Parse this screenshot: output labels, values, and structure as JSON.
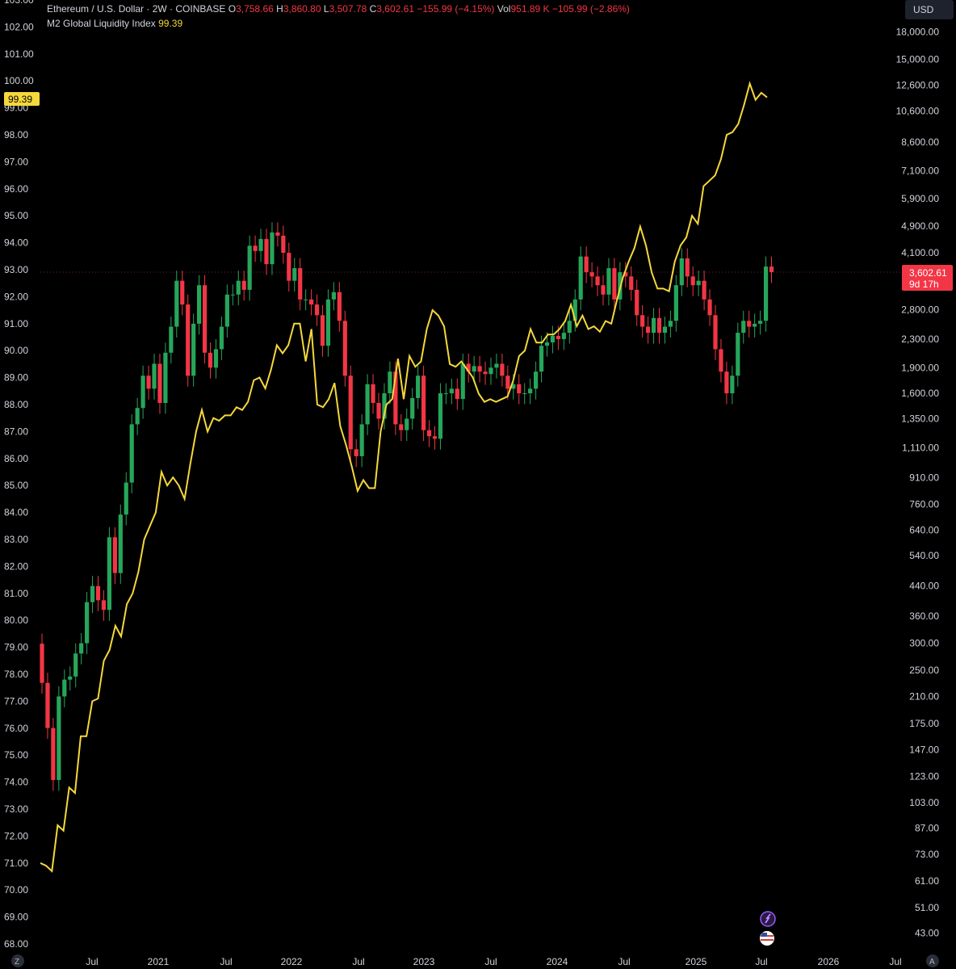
{
  "header": {
    "symbol": "Ethereum / U.S. Dollar · 2W · COINBASE",
    "o_label": "O",
    "o_value": "3,758.66",
    "h_label": "H",
    "h_value": "3,860.80",
    "l_label": "L",
    "l_value": "3,507.78",
    "c_label": "C",
    "c_value": "3,602.61",
    "change": "−155.99 (−4.15%)",
    "vol_label": "Vol",
    "vol_value": "951.89 K",
    "vol_change": "−105.99 (−2.86%)",
    "indicator_name": "M2 Global Liquidity Index",
    "indicator_value": "99.39"
  },
  "right_axis": {
    "currency": "USD",
    "price_tag": "3,602.61",
    "countdown": "9d 17h"
  },
  "left_axis": {
    "tag": "99.39"
  },
  "colors": {
    "up": "#26a65b",
    "down": "#f23645",
    "line": "#f5d83b",
    "grid_dash": "#7a1f25"
  },
  "icons": [
    "z-badge-icon",
    "a-badge-icon",
    "sparkle-icon",
    "us-flag-icon"
  ],
  "chart_data": {
    "type": "candlestick",
    "x_ticks": [
      "Jul",
      "2021",
      "Jul",
      "2022",
      "Jul",
      "2023",
      "Jul",
      "2024",
      "Jul",
      "2025",
      "Jul",
      "2026",
      "Jul"
    ],
    "y_left": {
      "label": "",
      "ticks": [
        103,
        102,
        101,
        100,
        99,
        98,
        97,
        96,
        95,
        94,
        93,
        92,
        91,
        90,
        89,
        88,
        87,
        86,
        85,
        84,
        83,
        82,
        81,
        80,
        79,
        78,
        77,
        76,
        75,
        74,
        73,
        72,
        71,
        70,
        69,
        68
      ],
      "range": [
        68,
        103
      ]
    },
    "y_right": {
      "label": "USD",
      "scale": "log",
      "ticks": [
        "18,000.00",
        "15,000.00",
        "12,600.00",
        "10,600.00",
        "8,600.00",
        "7,100.00",
        "5,900.00",
        "4,900.00",
        "4,100.00",
        "3,400.00",
        "2,800.00",
        "2,300.00",
        "1,900.00",
        "1,600.00",
        "1,350.00",
        "1,110.00",
        "910.00",
        "760.00",
        "640.00",
        "540.00",
        "440.00",
        "360.00",
        "300.00",
        "250.00",
        "210.00",
        "175.00",
        "147.00",
        "123.00",
        "103.00",
        "87.00",
        "73.00",
        "61.00",
        "51.00",
        "43.00"
      ]
    },
    "series": [
      {
        "name": "Ethereum / U.S. Dollar · 2W · COINBASE",
        "kind": "candles",
        "close": [
          230,
          170,
          120,
          210,
          235,
          240,
          280,
          300,
          395,
          440,
          400,
          375,
          610,
          480,
          710,
          880,
          1300,
          1450,
          1800,
          1650,
          1950,
          1500,
          2100,
          2500,
          3400,
          2900,
          1800,
          2550,
          3300,
          2100,
          1900,
          2150,
          2500,
          3100,
          3100,
          3400,
          3200,
          4300,
          4150,
          4500,
          3800,
          4700,
          4600,
          4100,
          3400,
          3700,
          3000,
          3000,
          2900,
          2700,
          2200,
          3000,
          3150,
          2600,
          1800,
          1100,
          1050,
          1300,
          1700,
          1500,
          1350,
          1600,
          1850,
          1300,
          1250,
          1350,
          1550,
          1800,
          1250,
          1200,
          1180,
          1600,
          1600,
          1650,
          1540,
          1950,
          1850,
          1920,
          1850,
          1820,
          1900,
          1950,
          1800,
          1650,
          1700,
          1600,
          1600,
          1650,
          1850,
          2200,
          2250,
          2350,
          2300,
          2400,
          2600,
          3000,
          4000,
          3600,
          3500,
          3300,
          3100,
          3700,
          3000,
          3600,
          3500,
          3200,
          2700,
          2500,
          2400,
          2650,
          2400,
          2500,
          2600,
          3300,
          3950,
          3500,
          3300,
          3400,
          3000,
          2700,
          2150,
          1850,
          1600,
          1800,
          2400,
          2600,
          2500,
          2550,
          2600,
          3740,
          3602.61
        ]
      },
      {
        "name": "M2 Global Liquidity Index",
        "kind": "line",
        "values": [
          71,
          70.9,
          70.7,
          72.4,
          72.2,
          73.8,
          73.6,
          75.7,
          75.7,
          77,
          77.1,
          78.5,
          78.9,
          79.8,
          79.4,
          80.6,
          81,
          81.8,
          83,
          83.5,
          84,
          85.5,
          85,
          85.3,
          85,
          84.5,
          85.8,
          87,
          87.8,
          87,
          87.5,
          87.4,
          87.6,
          87.6,
          87.9,
          87.8,
          88.1,
          88.9,
          89,
          88.6,
          89.3,
          90.2,
          89.9,
          90.2,
          91,
          91,
          89.6,
          90.8,
          88,
          87.9,
          88.2,
          88.8,
          87.2,
          86.5,
          85.7,
          84.8,
          85.2,
          84.9,
          84.9,
          87,
          88,
          88.2,
          89.7,
          88.2,
          89.8,
          89.4,
          89.6,
          90.8,
          91.5,
          91.3,
          90.9,
          89.5,
          89.4,
          89.6,
          89.3,
          89,
          88.4,
          88.1,
          88.2,
          88.1,
          88.2,
          88.3,
          88.9,
          89.8,
          90,
          90.8,
          90.3,
          90.3,
          90.6,
          90.6,
          90.8,
          91.1,
          91.7,
          90.9,
          91.3,
          90.8,
          90.9,
          90.7,
          91.1,
          91,
          91.9,
          92.7,
          93.3,
          93.8,
          94.6,
          93.9,
          92.9,
          92.3,
          92.3,
          92.2,
          93.3,
          93.9,
          94.2,
          95,
          94.7,
          96.1,
          96.3,
          96.5,
          97.1,
          98,
          98.1,
          98.4,
          99.1,
          99.9,
          99.3,
          99.56,
          99.39
        ]
      }
    ],
    "hline_price": 3602.61,
    "legend": "top-left"
  }
}
